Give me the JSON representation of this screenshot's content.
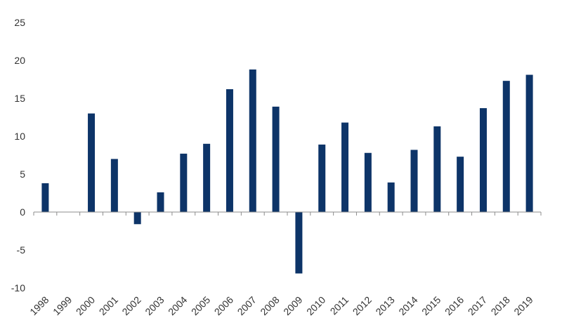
{
  "chart_data": {
    "type": "bar",
    "categories": [
      "1998",
      "1999",
      "2000",
      "2001",
      "2002",
      "2003",
      "2004",
      "2005",
      "2006",
      "2007",
      "2008",
      "2009",
      "2010",
      "2011",
      "2012",
      "2013",
      "2014",
      "2015",
      "2016",
      "2017",
      "2018",
      "2019"
    ],
    "values": [
      3.8,
      0,
      13.0,
      7.0,
      -1.6,
      2.6,
      7.7,
      9.0,
      16.2,
      18.8,
      13.9,
      -8.1,
      8.9,
      11.8,
      7.8,
      3.9,
      8.2,
      11.3,
      7.3,
      13.7,
      17.3,
      18.1
    ],
    "title": "",
    "xlabel": "",
    "ylabel": "",
    "ylim": [
      -10,
      25
    ],
    "yticks": [
      25,
      20,
      15,
      10,
      5,
      0,
      -5,
      -10
    ],
    "bar_color": "#0d3468",
    "axis_color": "#8c8c8c",
    "grid": false,
    "legend": "none"
  }
}
